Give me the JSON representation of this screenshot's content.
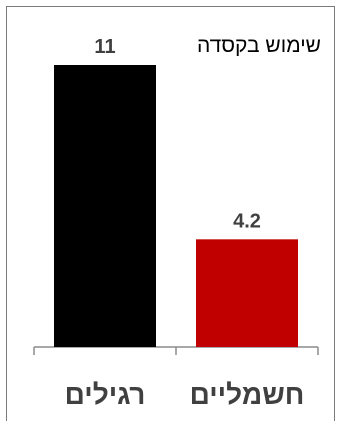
{
  "chart_data": {
    "type": "bar",
    "title": "שימוש בקסדה",
    "categories": [
      "רגילים",
      "חשמליים"
    ],
    "values": [
      11,
      4.2
    ],
    "value_labels": [
      "11",
      "4.2"
    ],
    "colors": [
      "#000000",
      "#c00000"
    ],
    "ylim": [
      0,
      11
    ],
    "grid": false,
    "legend": "none",
    "xlabel": "",
    "ylabel": ""
  }
}
